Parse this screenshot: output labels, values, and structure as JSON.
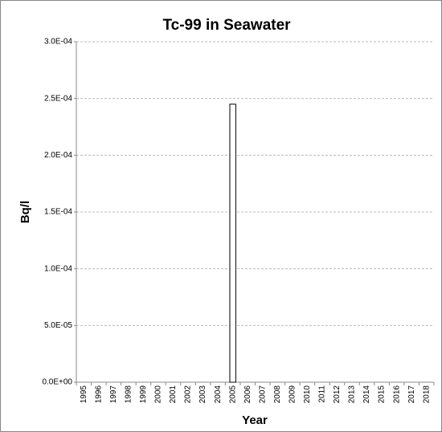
{
  "chart_data": {
    "type": "bar",
    "title": "Tc-99 in Seawater",
    "x_label": "Year",
    "y_label": "Bq/l",
    "categories": [
      "1995",
      "1996",
      "1997",
      "1998",
      "1999",
      "2000",
      "2001",
      "2002",
      "2003",
      "2004",
      "2005",
      "2006",
      "2007",
      "2008",
      "2009",
      "2010",
      "2011",
      "2012",
      "2013",
      "2014",
      "2015",
      "2016",
      "2017",
      "2018"
    ],
    "values": [
      null,
      null,
      null,
      null,
      null,
      null,
      null,
      null,
      null,
      null,
      0.000245,
      null,
      null,
      null,
      null,
      null,
      null,
      null,
      null,
      null,
      null,
      null,
      null,
      null
    ],
    "color": "#ffffff",
    "ylim": [
      0,
      0.0003
    ],
    "yticks": [
      {
        "value": 0,
        "label": "0.0E+00"
      },
      {
        "value": 5e-05,
        "label": "5.0E-05"
      },
      {
        "value": 0.0001,
        "label": "1.0E-04"
      },
      {
        "value": 0.00015,
        "label": "1.5E-04"
      },
      {
        "value": 0.0002,
        "label": "2.0E-04"
      },
      {
        "value": 0.00025,
        "label": "2.5E-04"
      },
      {
        "value": 0.0003,
        "label": "3.0E-04"
      }
    ],
    "grid": true
  }
}
